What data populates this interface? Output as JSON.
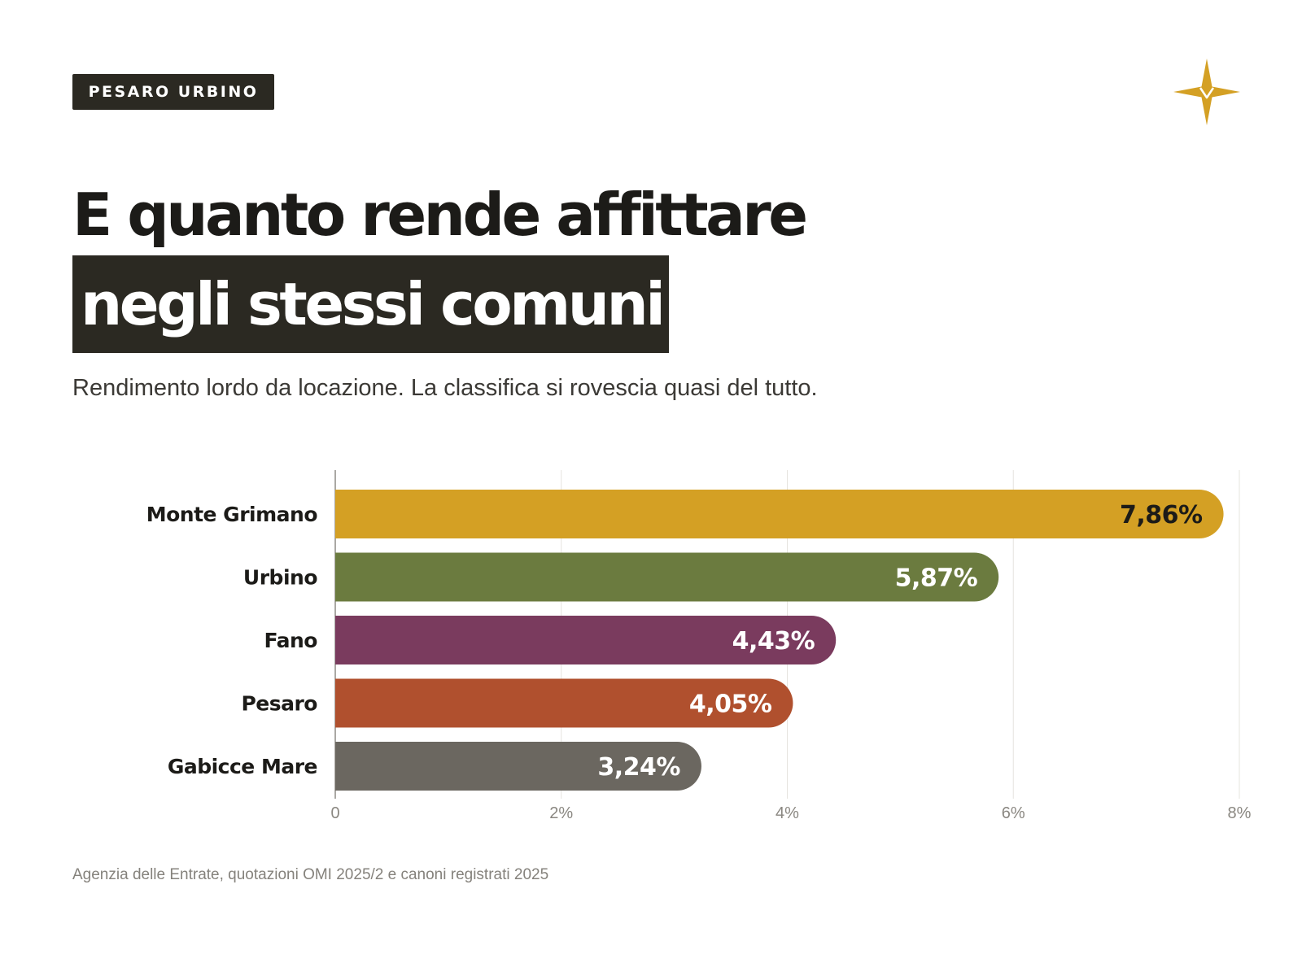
{
  "header": {
    "tag": "PESARO URBINO",
    "title_line1": "E quanto rende affittare",
    "title_line2": "negli stessi comuni",
    "subtitle": "Rendimento lordo da locazione. La classifica si rovescia quasi del tutto.",
    "logo_icon": "compass-star-icon"
  },
  "chart_data": {
    "type": "bar",
    "orientation": "horizontal",
    "categories": [
      "Monte Grimano",
      "Urbino",
      "Fano",
      "Pesaro",
      "Gabicce Mare"
    ],
    "values": [
      7.86,
      5.87,
      4.43,
      4.05,
      3.24
    ],
    "value_labels": [
      "7,86%",
      "5,87%",
      "4,43%",
      "4,05%",
      "3,24%"
    ],
    "colors": [
      "#d4a024",
      "#6b7b3f",
      "#7a3b5e",
      "#b0502e",
      "#6b6760"
    ],
    "value_label_colors": [
      "#1c1b18",
      "#ffffff",
      "#ffffff",
      "#ffffff",
      "#ffffff"
    ],
    "xlim": [
      0,
      8
    ],
    "xticks": [
      0,
      2,
      4,
      6,
      8
    ],
    "xtick_labels": [
      "0",
      "2%",
      "4%",
      "6%",
      "8%"
    ],
    "grid": true,
    "title": "",
    "xlabel": "",
    "ylabel": ""
  },
  "footer": {
    "source": "Agenzia delle Entrate, quotazioni OMI 2025/2 e canoni registrati 2025"
  },
  "colors": {
    "dark": "#2b2922",
    "accent": "#d4a024"
  }
}
